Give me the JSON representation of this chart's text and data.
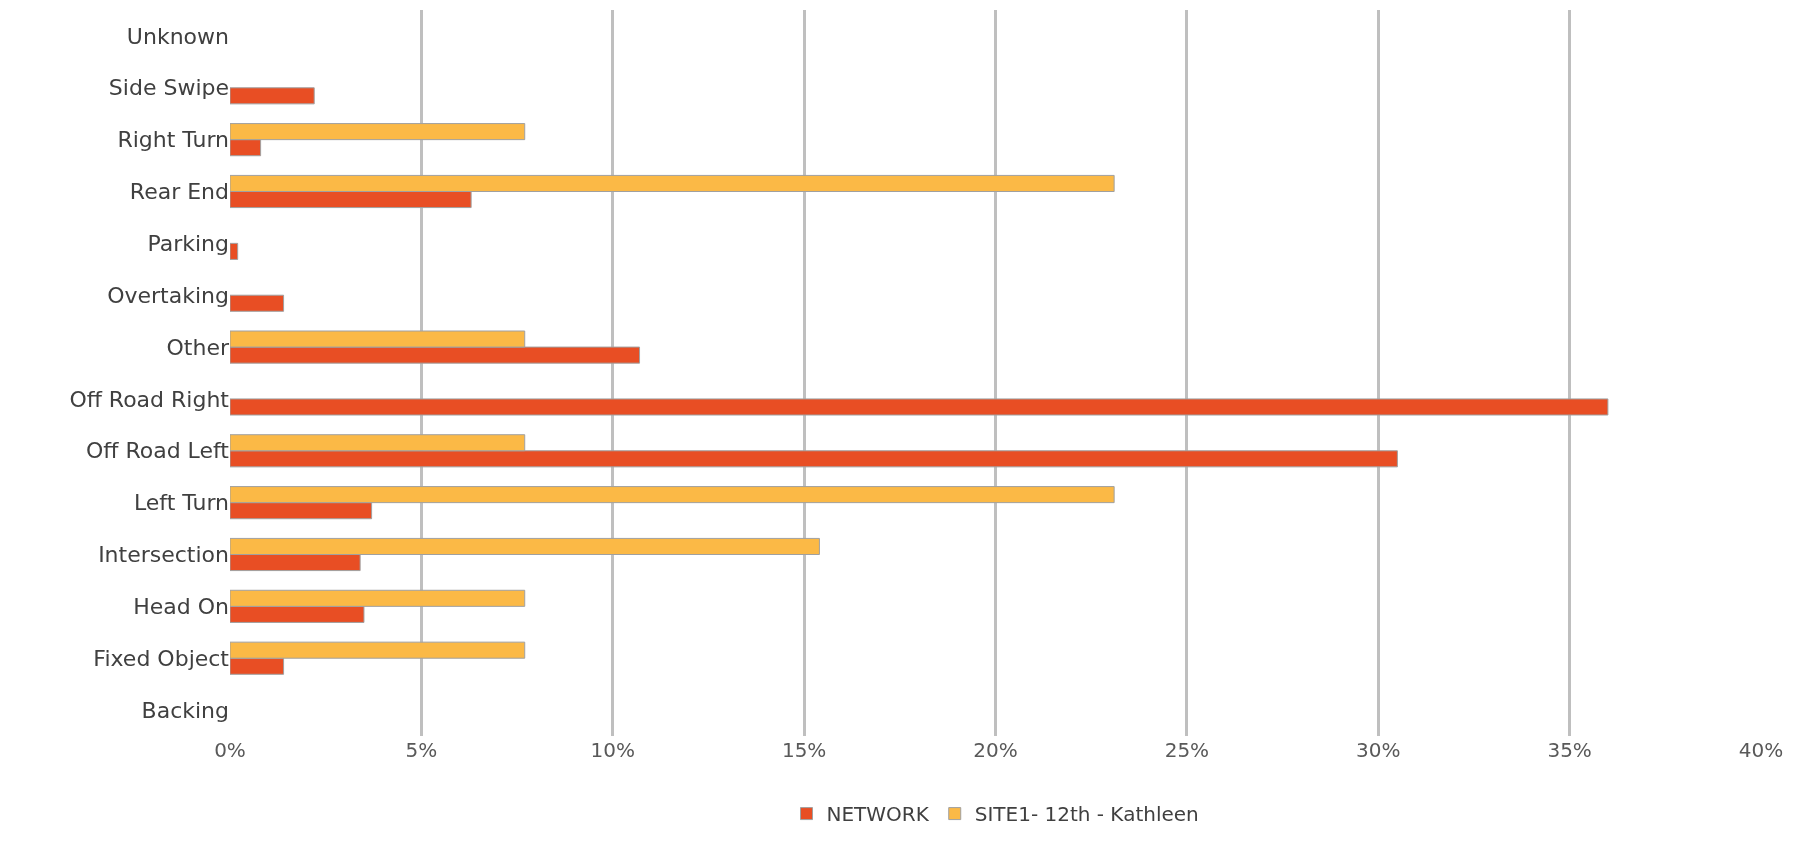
{
  "chart_data": {
    "type": "bar",
    "orientation": "horizontal",
    "categories": [
      "Unknown",
      "Side Swipe",
      "Right Turn",
      "Rear End",
      "Parking",
      "Overtaking",
      "Other",
      "Off Road Right",
      "Off Road Left",
      "Left Turn",
      "Intersection",
      "Head On",
      "Fixed Object",
      "Backing"
    ],
    "series": [
      {
        "name": "NETWORK",
        "color": "#e84e24",
        "values": [
          null,
          2.2,
          0.8,
          6.3,
          0.2,
          1.4,
          10.7,
          36.0,
          30.5,
          3.7,
          3.4,
          3.5,
          1.4,
          null
        ]
      },
      {
        "name": "SITE1- 12th - Kathleen",
        "color": "#fbb946",
        "values": [
          null,
          null,
          7.7,
          23.1,
          null,
          null,
          7.7,
          null,
          7.7,
          23.1,
          15.4,
          7.7,
          7.7,
          null
        ]
      }
    ],
    "xlim": [
      0,
      40
    ],
    "xticks": [
      {
        "value": 0,
        "label": "0%"
      },
      {
        "value": 5,
        "label": "5%"
      },
      {
        "value": 10,
        "label": "10%"
      },
      {
        "value": 15,
        "label": "15%"
      },
      {
        "value": 20,
        "label": "20%"
      },
      {
        "value": 25,
        "label": "25%"
      },
      {
        "value": 30,
        "label": "30%"
      },
      {
        "value": 35,
        "label": "35%"
      },
      {
        "value": 40,
        "label": "40%"
      }
    ],
    "grid": "x",
    "legend": "bottom"
  }
}
